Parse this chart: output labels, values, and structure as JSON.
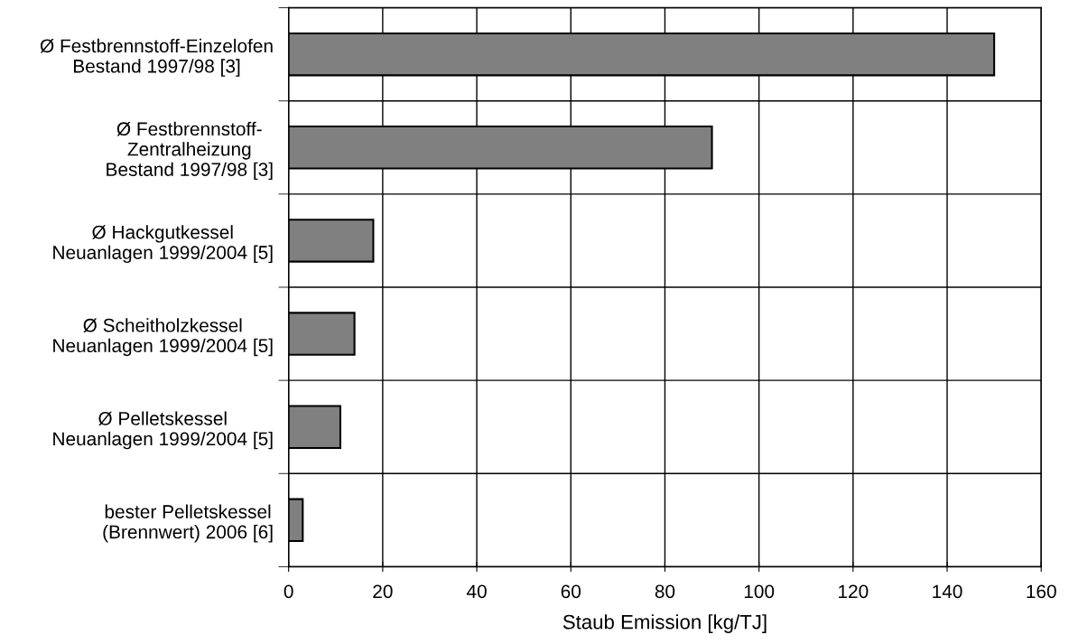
{
  "chart_data": {
    "type": "bar",
    "orientation": "horizontal",
    "xlabel": "Staub Emission [kg/TJ]",
    "categories": [
      "Ø Festbrennstoff-Einzelofen\nBestand 1997/98 [3]",
      "Ø Festbrennstoff-\nZentralheizung\nBestand 1997/98 [3]",
      "Ø Hackgutkessel\nNeuanlagen 1999/2004 [5]",
      "Ø Scheitholzkessel\nNeuanlagen 1999/2004 [5]",
      "Ø Pelletskessel\nNeuanlagen 1999/2004 [5]",
      "bester Pelletskessel\n(Brennwert) 2006 [6]"
    ],
    "values": [
      150,
      90,
      18,
      14,
      11,
      3
    ],
    "color": "#808080",
    "xlim": [
      0,
      160
    ],
    "xticks": [
      0,
      20,
      40,
      60,
      80,
      100,
      120,
      140,
      160
    ],
    "grid": true,
    "legend": false
  }
}
